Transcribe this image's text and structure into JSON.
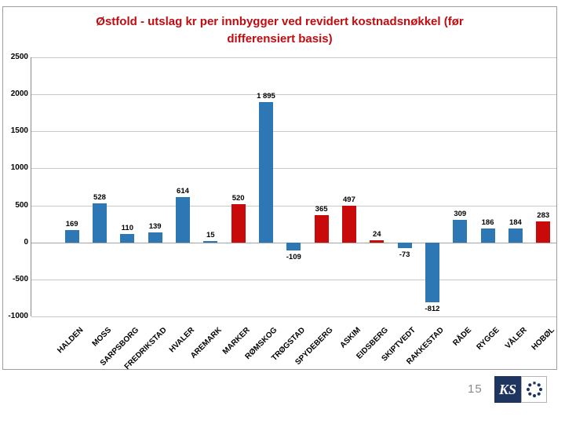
{
  "slide": {
    "page_number": "15"
  },
  "title": {
    "lines": [
      "Østfold - utslag kr per innbygger ved revidert kostnadsnøkkel (før",
      "differensiert basis)"
    ],
    "color": "#c00b10"
  },
  "logo": {
    "text": "KS",
    "navy": "#1e3560"
  },
  "chart_data": {
    "type": "bar",
    "title": "Østfold - utslag kr per innbygger ved revidert kostnadsnøkkel (før differensiert basis)",
    "xlabel": "",
    "ylabel": "",
    "ylim": [
      -1000,
      2500
    ],
    "grid": "horizontal",
    "legend": "none",
    "categories": [
      "HALDEN",
      "MOSS",
      "SARPSBORG",
      "FREDRIKSTAD",
      "HVALER",
      "AREMARK",
      "MARKER",
      "RØMSKOG",
      "TRØGSTAD",
      "SPYDEBERG",
      "ASKIM",
      "EIDSBERG",
      "SKIPTVEDT",
      "RAKKESTAD",
      "RÅDE",
      "RYGGE",
      "VÅLER",
      "HOBØL"
    ],
    "values": [
      169,
      528,
      110,
      139,
      614,
      15,
      520,
      1895,
      -109,
      365,
      497,
      24,
      -73,
      -812,
      309,
      186,
      184,
      283
    ],
    "value_labels": [
      "169",
      "528",
      "110",
      "139",
      "614",
      "15",
      "520",
      "1 895",
      "-109",
      "365",
      "497",
      "24",
      "-73",
      "-812",
      "309",
      "186",
      "184",
      "283"
    ],
    "bar_colors": [
      "blue",
      "blue",
      "blue",
      "blue",
      "blue",
      "blue",
      "red",
      "blue",
      "blue",
      "red",
      "red",
      "red",
      "blue",
      "blue",
      "blue",
      "blue",
      "blue",
      "red"
    ],
    "colors": {
      "blue": "#2e77b5",
      "red": "#c80a0a"
    },
    "yticks": [
      {
        "value": 2500,
        "label": "2500"
      },
      {
        "value": 2000,
        "label": "2000"
      },
      {
        "value": 1500,
        "label": "1500"
      },
      {
        "value": 1000,
        "label": "1000"
      },
      {
        "value": 500,
        "label": "500"
      },
      {
        "value": 0,
        "label": "0"
      },
      {
        "value": -500,
        "label": "-500"
      },
      {
        "value": -1000,
        "label": "-1000"
      }
    ]
  }
}
